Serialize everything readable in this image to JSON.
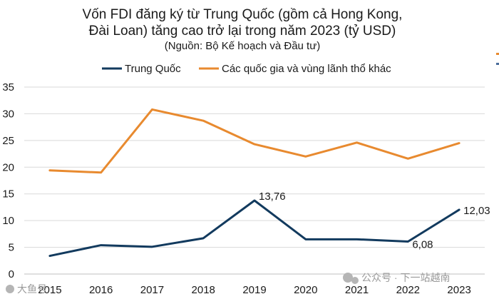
{
  "chart_data": {
    "type": "line",
    "title_lines": [
      "Vốn FDI đăng ký từ Trung Quốc (gồm cả Hong Kong,",
      "Đài Loan) tăng cao trở lại trong năm 2023 (tỷ USD)"
    ],
    "subtitle": "(Nguồn: Bộ Kế hoạch và Đầu tư)",
    "categories": [
      "2015",
      "2016",
      "2017",
      "2018",
      "2019",
      "2020",
      "2021",
      "2022",
      "2023"
    ],
    "ylim": [
      0,
      35
    ],
    "yticks": [
      0,
      5,
      10,
      15,
      20,
      25,
      30,
      35
    ],
    "ytick_labels": [
      "0",
      "5",
      "10",
      "15",
      "20",
      "25",
      "30",
      "35"
    ],
    "grid": true,
    "legend_position": "top",
    "series": [
      {
        "name": "Trung Quốc",
        "color": "#123a5e",
        "values": [
          3.4,
          5.4,
          5.1,
          6.7,
          13.76,
          6.5,
          6.5,
          6.08,
          12.03
        ],
        "labels": [
          {
            "index": 4,
            "text": "13,76"
          },
          {
            "index": 7,
            "text": "6,08"
          },
          {
            "index": 8,
            "text": "12,03"
          }
        ]
      },
      {
        "name": "Các quốc gia và vùng lãnh thổ khác",
        "color": "#e88a2f",
        "values": [
          19.4,
          19.0,
          30.8,
          28.7,
          24.3,
          22.0,
          24.6,
          21.6,
          24.5
        ],
        "labels": []
      }
    ]
  },
  "watermark": {
    "text": "公众号 · 下一站越南",
    "corner_text": "大鱼号"
  }
}
